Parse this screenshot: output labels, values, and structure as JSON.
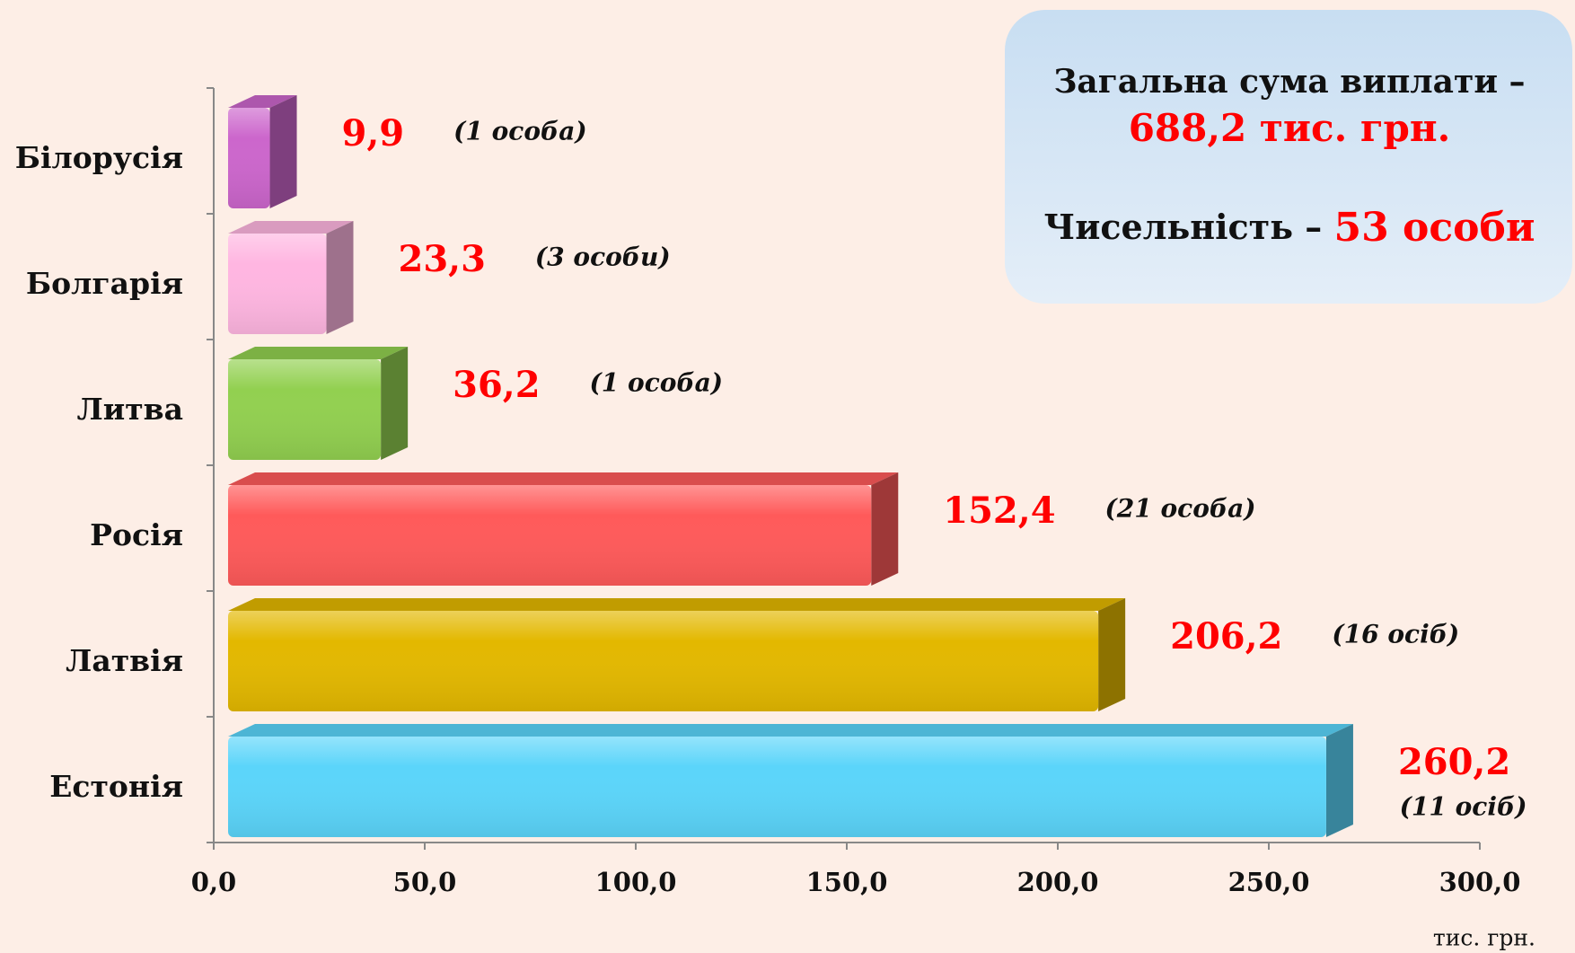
{
  "chart_data": {
    "type": "bar",
    "orientation": "horizontal",
    "categories": [
      "Білорусія",
      "Болгарія",
      "Литва",
      "Росія",
      "Латвія",
      "Естонія"
    ],
    "values": [
      9.9,
      23.3,
      36.2,
      152.4,
      206.2,
      260.2
    ],
    "value_labels": [
      "9,9",
      "23,3",
      "36,2",
      "152,4",
      "206,2",
      "260,2"
    ],
    "annotations": [
      "(1 особа)",
      "(3 особи)",
      "(1 особа)",
      "(21 особа)",
      "(16 осіб)",
      "(11 осіб)"
    ],
    "colors": [
      "#cc66cc",
      "#ffb6e1",
      "#92d050",
      "#ff5a5a",
      "#e3b800",
      "#5bd5fa"
    ],
    "xlim": [
      0,
      300
    ],
    "xticks": [
      {
        "value": 0,
        "label": "0,0"
      },
      {
        "value": 50,
        "label": "50,0"
      },
      {
        "value": 100,
        "label": "100,0"
      },
      {
        "value": 150,
        "label": "150,0"
      },
      {
        "value": 200,
        "label": "200,0"
      },
      {
        "value": 250,
        "label": "250,0"
      },
      {
        "value": 300,
        "label": "300,0"
      }
    ],
    "x_unit": "тис. грн.",
    "info": {
      "line1": "Загальна сума виплати –",
      "line2": "688,2 тис. грн.",
      "line3": "Чисельність –",
      "line4": "53 особи"
    }
  }
}
